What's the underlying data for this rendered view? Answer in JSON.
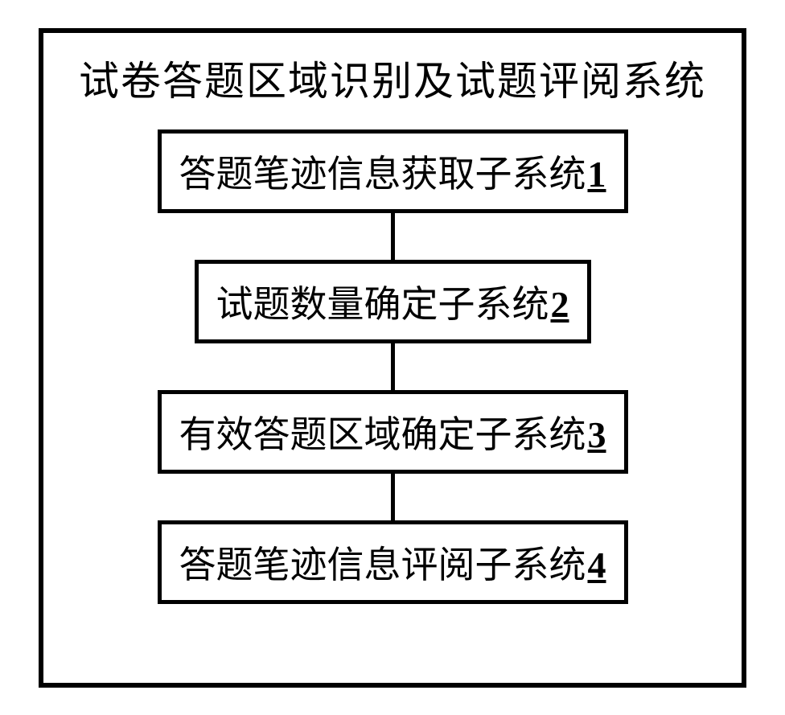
{
  "diagram": {
    "title": "试卷答题区域识别及试题评阅系统",
    "border_color": "#000000",
    "background_color": "#ffffff",
    "text_color": "#000000",
    "border_width": 6,
    "node_border_width": 5,
    "connector_width": 5,
    "connector_height": 58,
    "title_fontsize": 50,
    "node_fontsize": 46,
    "nodes": [
      {
        "label": "答题笔迹信息获取子系统",
        "number": "1"
      },
      {
        "label": "试题数量确定子系统",
        "number": "2"
      },
      {
        "label": "有效答题区域确定子系统",
        "number": "3"
      },
      {
        "label": "答题笔迹信息评阅子系统",
        "number": "4"
      }
    ]
  }
}
